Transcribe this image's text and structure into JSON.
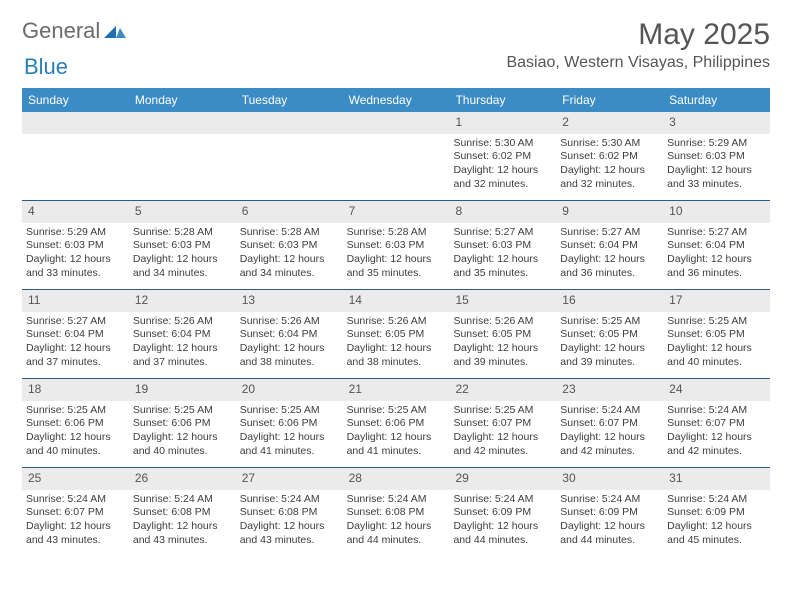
{
  "brand": {
    "general": "General",
    "blue": "Blue"
  },
  "title": "May 2025",
  "location": "Basiao, Western Visayas, Philippines",
  "colors": {
    "header_bg": "#3b8bc4",
    "header_text": "#ffffff",
    "daynum_bg": "#ebebeb",
    "week_border": "#2b5a82",
    "logo_accent": "#2a7fba",
    "text": "#3d3d3d",
    "background": "#ffffff"
  },
  "weekdays": [
    "Sunday",
    "Monday",
    "Tuesday",
    "Wednesday",
    "Thursday",
    "Friday",
    "Saturday"
  ],
  "weeks": [
    [
      {
        "n": "",
        "lines": []
      },
      {
        "n": "",
        "lines": []
      },
      {
        "n": "",
        "lines": []
      },
      {
        "n": "",
        "lines": []
      },
      {
        "n": "1",
        "lines": [
          "Sunrise: 5:30 AM",
          "Sunset: 6:02 PM",
          "Daylight: 12 hours and 32 minutes."
        ]
      },
      {
        "n": "2",
        "lines": [
          "Sunrise: 5:30 AM",
          "Sunset: 6:02 PM",
          "Daylight: 12 hours and 32 minutes."
        ]
      },
      {
        "n": "3",
        "lines": [
          "Sunrise: 5:29 AM",
          "Sunset: 6:03 PM",
          "Daylight: 12 hours and 33 minutes."
        ]
      }
    ],
    [
      {
        "n": "4",
        "lines": [
          "Sunrise: 5:29 AM",
          "Sunset: 6:03 PM",
          "Daylight: 12 hours and 33 minutes."
        ]
      },
      {
        "n": "5",
        "lines": [
          "Sunrise: 5:28 AM",
          "Sunset: 6:03 PM",
          "Daylight: 12 hours and 34 minutes."
        ]
      },
      {
        "n": "6",
        "lines": [
          "Sunrise: 5:28 AM",
          "Sunset: 6:03 PM",
          "Daylight: 12 hours and 34 minutes."
        ]
      },
      {
        "n": "7",
        "lines": [
          "Sunrise: 5:28 AM",
          "Sunset: 6:03 PM",
          "Daylight: 12 hours and 35 minutes."
        ]
      },
      {
        "n": "8",
        "lines": [
          "Sunrise: 5:27 AM",
          "Sunset: 6:03 PM",
          "Daylight: 12 hours and 35 minutes."
        ]
      },
      {
        "n": "9",
        "lines": [
          "Sunrise: 5:27 AM",
          "Sunset: 6:04 PM",
          "Daylight: 12 hours and 36 minutes."
        ]
      },
      {
        "n": "10",
        "lines": [
          "Sunrise: 5:27 AM",
          "Sunset: 6:04 PM",
          "Daylight: 12 hours and 36 minutes."
        ]
      }
    ],
    [
      {
        "n": "11",
        "lines": [
          "Sunrise: 5:27 AM",
          "Sunset: 6:04 PM",
          "Daylight: 12 hours and 37 minutes."
        ]
      },
      {
        "n": "12",
        "lines": [
          "Sunrise: 5:26 AM",
          "Sunset: 6:04 PM",
          "Daylight: 12 hours and 37 minutes."
        ]
      },
      {
        "n": "13",
        "lines": [
          "Sunrise: 5:26 AM",
          "Sunset: 6:04 PM",
          "Daylight: 12 hours and 38 minutes."
        ]
      },
      {
        "n": "14",
        "lines": [
          "Sunrise: 5:26 AM",
          "Sunset: 6:05 PM",
          "Daylight: 12 hours and 38 minutes."
        ]
      },
      {
        "n": "15",
        "lines": [
          "Sunrise: 5:26 AM",
          "Sunset: 6:05 PM",
          "Daylight: 12 hours and 39 minutes."
        ]
      },
      {
        "n": "16",
        "lines": [
          "Sunrise: 5:25 AM",
          "Sunset: 6:05 PM",
          "Daylight: 12 hours and 39 minutes."
        ]
      },
      {
        "n": "17",
        "lines": [
          "Sunrise: 5:25 AM",
          "Sunset: 6:05 PM",
          "Daylight: 12 hours and 40 minutes."
        ]
      }
    ],
    [
      {
        "n": "18",
        "lines": [
          "Sunrise: 5:25 AM",
          "Sunset: 6:06 PM",
          "Daylight: 12 hours and 40 minutes."
        ]
      },
      {
        "n": "19",
        "lines": [
          "Sunrise: 5:25 AM",
          "Sunset: 6:06 PM",
          "Daylight: 12 hours and 40 minutes."
        ]
      },
      {
        "n": "20",
        "lines": [
          "Sunrise: 5:25 AM",
          "Sunset: 6:06 PM",
          "Daylight: 12 hours and 41 minutes."
        ]
      },
      {
        "n": "21",
        "lines": [
          "Sunrise: 5:25 AM",
          "Sunset: 6:06 PM",
          "Daylight: 12 hours and 41 minutes."
        ]
      },
      {
        "n": "22",
        "lines": [
          "Sunrise: 5:25 AM",
          "Sunset: 6:07 PM",
          "Daylight: 12 hours and 42 minutes."
        ]
      },
      {
        "n": "23",
        "lines": [
          "Sunrise: 5:24 AM",
          "Sunset: 6:07 PM",
          "Daylight: 12 hours and 42 minutes."
        ]
      },
      {
        "n": "24",
        "lines": [
          "Sunrise: 5:24 AM",
          "Sunset: 6:07 PM",
          "Daylight: 12 hours and 42 minutes."
        ]
      }
    ],
    [
      {
        "n": "25",
        "lines": [
          "Sunrise: 5:24 AM",
          "Sunset: 6:07 PM",
          "Daylight: 12 hours and 43 minutes."
        ]
      },
      {
        "n": "26",
        "lines": [
          "Sunrise: 5:24 AM",
          "Sunset: 6:08 PM",
          "Daylight: 12 hours and 43 minutes."
        ]
      },
      {
        "n": "27",
        "lines": [
          "Sunrise: 5:24 AM",
          "Sunset: 6:08 PM",
          "Daylight: 12 hours and 43 minutes."
        ]
      },
      {
        "n": "28",
        "lines": [
          "Sunrise: 5:24 AM",
          "Sunset: 6:08 PM",
          "Daylight: 12 hours and 44 minutes."
        ]
      },
      {
        "n": "29",
        "lines": [
          "Sunrise: 5:24 AM",
          "Sunset: 6:09 PM",
          "Daylight: 12 hours and 44 minutes."
        ]
      },
      {
        "n": "30",
        "lines": [
          "Sunrise: 5:24 AM",
          "Sunset: 6:09 PM",
          "Daylight: 12 hours and 44 minutes."
        ]
      },
      {
        "n": "31",
        "lines": [
          "Sunrise: 5:24 AM",
          "Sunset: 6:09 PM",
          "Daylight: 12 hours and 45 minutes."
        ]
      }
    ]
  ]
}
